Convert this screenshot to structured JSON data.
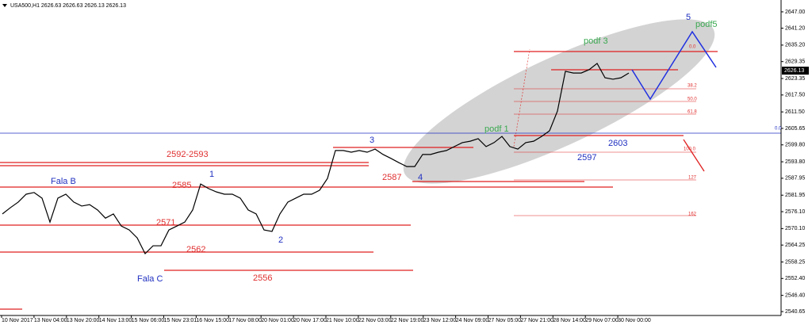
{
  "header": "USA500,H1  2626.63 2626.63 2626.13 2626.13",
  "chart_data": {
    "type": "line",
    "color": "#000000",
    "values": [
      2575.3,
      2577.5,
      2579.5,
      2582.3,
      2582.9,
      2580.9,
      2572.4,
      2580.9,
      2582.3,
      2579.5,
      2578.1,
      2578.6,
      2576.7,
      2573.8,
      2575.3,
      2571.0,
      2569.6,
      2566.8,
      2561.2,
      2564.0,
      2564.0,
      2569.6,
      2571.0,
      2572.4,
      2576.7,
      2585.9,
      2584.3,
      2583.1,
      2582.3,
      2582.3,
      2580.9,
      2576.7,
      2575.3,
      2569.6,
      2569.1,
      2575.3,
      2579.5,
      2580.9,
      2582.3,
      2582.3,
      2583.7,
      2587.9,
      2597.8,
      2597.8,
      2597.2,
      2597.8,
      2597.2,
      2598.3,
      2596.4,
      2595.0,
      2593.5,
      2592.1,
      2592.1,
      2596.4,
      2596.4,
      2597.2,
      2597.8,
      2599.2,
      2600.6,
      2601.1,
      2602.0,
      2599.2,
      2600.6,
      2602.8,
      2599.2,
      2598.3,
      2600.6,
      2601.1,
      2602.8,
      2604.8,
      2611.8,
      2625.9,
      2625.3,
      2625.3,
      2626.5,
      2628.7,
      2623.6,
      2623.1,
      2623.6,
      2625.3
    ],
    "time_labels": [
      "10 Nov 2017",
      "13 Nov 04:00",
      "13 Nov 20:00",
      "14 Nov 13:00",
      "15 Nov 06:00",
      "15 Nov 23:01",
      "16 Nov 15:00",
      "17 Nov 08:00",
      "20 Nov 01:00",
      "20 Nov 17:00",
      "21 Nov 10:00",
      "22 Nov 03:00",
      "22 Nov 19:00",
      "23 Nov 12:00",
      "24 Nov 09:00",
      "27 Nov 05:00",
      "27 Nov 21:00",
      "28 Nov 14:00",
      "29 Nov 07:00",
      "30 Nov 00:00"
    ],
    "ylim": [
      2538.7,
      2651.2
    ],
    "yticks": [
      {
        "value": 2647,
        "label": "2647.00"
      },
      {
        "value": 2641.2,
        "label": "2641.20"
      },
      {
        "value": 2635.2,
        "label": "2635.20"
      },
      {
        "value": 2629.35,
        "label": "2629.35"
      },
      {
        "value": 2623.35,
        "label": "2623.35"
      },
      {
        "value": 2617.5,
        "label": "2617.50"
      },
      {
        "value": 2611.5,
        "label": "2611.50"
      },
      {
        "value": 2605.65,
        "label": "2605.65"
      },
      {
        "value": 2599.8,
        "label": "2599.80"
      },
      {
        "value": 2593.8,
        "label": "2593.80"
      },
      {
        "value": 2587.95,
        "label": "2587.95"
      },
      {
        "value": 2581.95,
        "label": "2581.95"
      },
      {
        "value": 2576.1,
        "label": "2576.10"
      },
      {
        "value": 2570.1,
        "label": "2570.10"
      },
      {
        "value": 2564.25,
        "label": "2564.25"
      },
      {
        "value": 2558.25,
        "label": "2558.25"
      },
      {
        "value": 2552.4,
        "label": "2552.40"
      },
      {
        "value": 2546.4,
        "label": "2546.40"
      },
      {
        "value": 2540.65,
        "label": "2540.65"
      }
    ],
    "current_price": {
      "value": 2626.13,
      "label": "2626.13"
    }
  },
  "annotations": {
    "levels": [
      "2592-2593",
      "2585",
      "2571",
      "2562",
      "2556",
      "2587",
      "2597",
      "2603"
    ],
    "waves": [
      "Fala B",
      "1",
      "2",
      "3",
      "4",
      "5",
      "Fala C"
    ],
    "subwaves": [
      "podf 1",
      "podf 3",
      "podf5"
    ],
    "fib": [
      "0.0",
      "38.2",
      "50.0",
      "61.8",
      "100.0",
      "127",
      "162"
    ],
    "hline_label": "0.0"
  }
}
